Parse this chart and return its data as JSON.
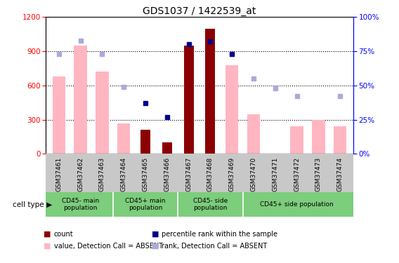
{
  "title": "GDS1037 / 1422539_at",
  "samples": [
    "GSM37461",
    "GSM37462",
    "GSM37463",
    "GSM37464",
    "GSM37465",
    "GSM37466",
    "GSM37467",
    "GSM37468",
    "GSM37469",
    "GSM37470",
    "GSM37471",
    "GSM37472",
    "GSM37473",
    "GSM37474"
  ],
  "cell_type_groups": [
    {
      "label": "CD45- main\npopulation",
      "start": 0,
      "end": 3
    },
    {
      "label": "CD45+ main\npopulation",
      "start": 3,
      "end": 6
    },
    {
      "label": "CD45- side\npopulation",
      "start": 6,
      "end": 9
    },
    {
      "label": "CD45+ side population",
      "start": 9,
      "end": 14
    }
  ],
  "count_values": [
    null,
    null,
    null,
    null,
    210,
    100,
    950,
    1100,
    null,
    null,
    null,
    null,
    null,
    null
  ],
  "percentile_rank": [
    null,
    null,
    null,
    null,
    37,
    27,
    80,
    82,
    73,
    null,
    null,
    null,
    null,
    null
  ],
  "absent_value": [
    680,
    950,
    720,
    270,
    null,
    null,
    null,
    null,
    780,
    350,
    null,
    240,
    300,
    240
  ],
  "absent_rank": [
    73,
    83,
    73,
    49,
    null,
    null,
    null,
    null,
    null,
    55,
    48,
    42,
    null,
    42
  ],
  "ylim_left": [
    0,
    1200
  ],
  "ylim_right": [
    0,
    100
  ],
  "yticks_left": [
    0,
    300,
    600,
    900,
    1200
  ],
  "yticks_right": [
    0,
    25,
    50,
    75,
    100
  ],
  "dark_red": "#8B0000",
  "dark_blue": "#00008B",
  "light_pink": "#FFB6C1",
  "light_blue": "#AAAADD",
  "cell_type_green": "#7CCD7C",
  "gray_bg": "#C8C8C8"
}
